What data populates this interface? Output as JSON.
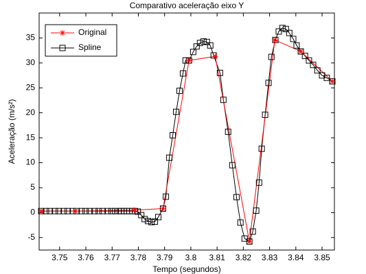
{
  "chart_data": {
    "type": "line",
    "title": "Comparativo aceleração eixo Y",
    "xlabel": "Tempo (segundos)",
    "ylabel": "Aceleração (m/s²)",
    "xlim": [
      3.7422,
      3.8547
    ],
    "ylim": [
      -7.5,
      40
    ],
    "xticks": [
      3.75,
      3.76,
      3.77,
      3.78,
      3.79,
      3.8,
      3.81,
      3.82,
      3.83,
      3.84,
      3.85
    ],
    "yticks": [
      -5,
      0,
      5,
      10,
      15,
      20,
      25,
      30,
      35
    ],
    "legend": "upper left",
    "series": [
      {
        "name": "Original",
        "color": "#ff0000",
        "marker": "asterisk",
        "x": [
          3.743,
          3.756,
          3.7785,
          3.7894,
          3.7993,
          3.8093,
          3.8223,
          3.832,
          3.8419,
          3.8539
        ],
        "values": [
          0.3,
          0.3,
          0.5,
          0.8,
          30.5,
          31.3,
          -5.8,
          34.6,
          32.3,
          26.3
        ]
      },
      {
        "name": "Spline",
        "color": "#000000",
        "marker": "square",
        "x": [
          3.743,
          3.7448,
          3.7463,
          3.7482,
          3.7497,
          3.7516,
          3.7531,
          3.755,
          3.7565,
          3.7584,
          3.7599,
          3.7615,
          3.7633,
          3.7649,
          3.7664,
          3.7683,
          3.7698,
          3.7711,
          3.7725,
          3.7735,
          3.7745,
          3.7756,
          3.7766,
          3.7777,
          3.7787,
          3.7798,
          3.7811,
          3.7824,
          3.7837,
          3.785,
          3.7863,
          3.7876,
          3.7894,
          3.7905,
          3.7918,
          3.7931,
          3.7944,
          3.7957,
          3.797,
          3.798,
          3.7993,
          3.8009,
          3.8022,
          3.8035,
          3.8048,
          3.8061,
          3.8074,
          3.8087,
          3.8111,
          3.8124,
          3.8142,
          3.8158,
          3.8174,
          3.8189,
          3.8205,
          3.8223,
          3.8236,
          3.8249,
          3.826,
          3.827,
          3.8283,
          3.8296,
          3.8307,
          3.8322,
          3.8335,
          3.8349,
          3.8362,
          3.8375,
          3.839,
          3.8403,
          3.8419,
          3.8435,
          3.845,
          3.8466,
          3.8482,
          3.85,
          3.8518,
          3.8539
        ],
        "values": [
          0.3,
          0.3,
          0.3,
          0.3,
          0.3,
          0.3,
          0.3,
          0.3,
          0.3,
          0.3,
          0.3,
          0.3,
          0.3,
          0.3,
          0.3,
          0.3,
          0.3,
          0.3,
          0.3,
          0.3,
          0.3,
          0.3,
          0.3,
          0.3,
          0.3,
          0.2,
          -0.5,
          -1.3,
          -1.7,
          -1.9,
          -1.8,
          -0.9,
          0.8,
          3.2,
          11,
          15.5,
          20.2,
          24.4,
          27.9,
          30.5,
          30.5,
          32.2,
          33.3,
          34,
          34.3,
          34.2,
          33.5,
          31.5,
          28,
          22.6,
          16.2,
          9.5,
          3.1,
          -2,
          -5.2,
          -5.8,
          -3.8,
          0.4,
          6,
          12.8,
          19.6,
          26,
          31.2,
          34.6,
          36.3,
          37,
          36.8,
          36,
          34.8,
          33.5,
          32.3,
          31.4,
          30.5,
          29.6,
          28.5,
          27.5,
          27,
          26.3
        ]
      }
    ]
  }
}
